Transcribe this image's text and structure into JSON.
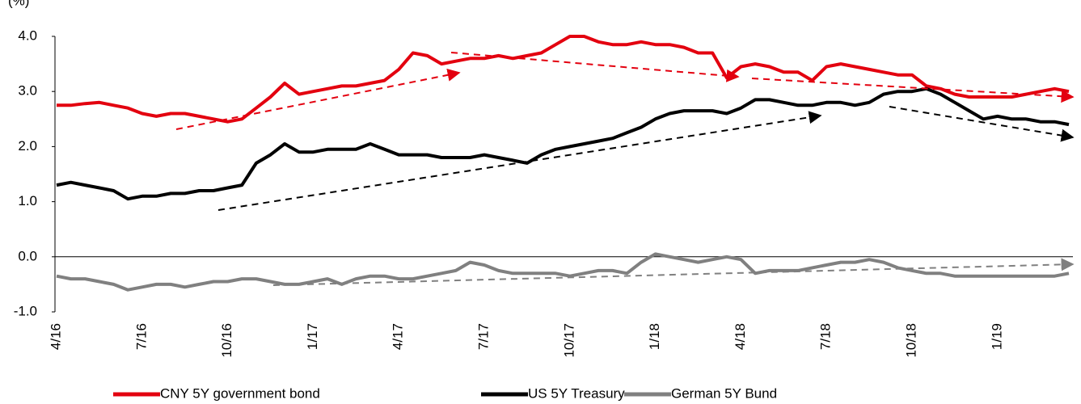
{
  "chart_data": {
    "type": "line",
    "y_label": "(%)",
    "categories": [
      "4/16",
      null,
      null,
      null,
      null,
      null,
      "7/16",
      null,
      null,
      null,
      null,
      null,
      "10/16",
      null,
      null,
      null,
      null,
      null,
      "1/17",
      null,
      null,
      null,
      null,
      null,
      "4/17",
      null,
      null,
      null,
      null,
      null,
      "7/17",
      null,
      null,
      null,
      null,
      null,
      "10/17",
      null,
      null,
      null,
      null,
      null,
      "1/18",
      null,
      null,
      null,
      null,
      null,
      "4/18",
      null,
      null,
      null,
      null,
      null,
      "7/18",
      null,
      null,
      null,
      null,
      null,
      "10/18",
      null,
      null,
      null,
      null,
      null,
      "1/19",
      null,
      null,
      null,
      null,
      null
    ],
    "series": [
      {
        "name": "CNY 5Y government bond",
        "color": "#e3000f",
        "values": [
          2.75,
          2.75,
          2.78,
          2.8,
          2.75,
          2.7,
          2.6,
          2.55,
          2.6,
          2.6,
          2.55,
          2.5,
          2.45,
          2.5,
          2.7,
          2.9,
          3.15,
          2.95,
          3.0,
          3.05,
          3.1,
          3.1,
          3.15,
          3.2,
          3.4,
          3.7,
          3.65,
          3.5,
          3.55,
          3.6,
          3.6,
          3.65,
          3.6,
          3.65,
          3.7,
          3.85,
          4.0,
          4.0,
          3.9,
          3.85,
          3.85,
          3.9,
          3.85,
          3.85,
          3.8,
          3.7,
          3.7,
          3.25,
          3.45,
          3.5,
          3.45,
          3.35,
          3.35,
          3.2,
          3.45,
          3.5,
          3.45,
          3.4,
          3.35,
          3.3,
          3.3,
          3.1,
          3.05,
          2.95,
          2.9,
          2.9,
          2.9,
          2.9,
          2.95,
          3.0,
          3.05,
          3.0
        ]
      },
      {
        "name": "US 5Y Treasury",
        "color": "#000000",
        "values": [
          1.3,
          1.35,
          1.3,
          1.25,
          1.2,
          1.05,
          1.1,
          1.1,
          1.15,
          1.15,
          1.2,
          1.2,
          1.25,
          1.3,
          1.7,
          1.85,
          2.05,
          1.9,
          1.9,
          1.95,
          1.95,
          1.95,
          2.05,
          1.95,
          1.85,
          1.85,
          1.85,
          1.8,
          1.8,
          1.8,
          1.85,
          1.8,
          1.75,
          1.7,
          1.85,
          1.95,
          2.0,
          2.05,
          2.1,
          2.15,
          2.25,
          2.35,
          2.5,
          2.6,
          2.65,
          2.65,
          2.65,
          2.6,
          2.7,
          2.85,
          2.85,
          2.8,
          2.75,
          2.75,
          2.8,
          2.8,
          2.75,
          2.8,
          2.95,
          3.0,
          3.0,
          3.05,
          2.95,
          2.8,
          2.65,
          2.5,
          2.55,
          2.5,
          2.5,
          2.45,
          2.45,
          2.4
        ]
      },
      {
        "name": "German 5Y Bund",
        "color": "#808080",
        "values": [
          -0.35,
          -0.4,
          -0.4,
          -0.45,
          -0.5,
          -0.6,
          -0.55,
          -0.5,
          -0.5,
          -0.55,
          -0.5,
          -0.45,
          -0.45,
          -0.4,
          -0.4,
          -0.45,
          -0.5,
          -0.5,
          -0.45,
          -0.4,
          -0.5,
          -0.4,
          -0.35,
          -0.35,
          -0.4,
          -0.4,
          -0.35,
          -0.3,
          -0.25,
          -0.1,
          -0.15,
          -0.25,
          -0.3,
          -0.3,
          -0.3,
          -0.3,
          -0.35,
          -0.3,
          -0.25,
          -0.25,
          -0.3,
          -0.1,
          0.05,
          0.0,
          -0.05,
          -0.1,
          -0.05,
          0.0,
          -0.05,
          -0.3,
          -0.25,
          -0.25,
          -0.25,
          -0.2,
          -0.15,
          -0.1,
          -0.1,
          -0.05,
          -0.1,
          -0.2,
          -0.25,
          -0.3,
          -0.3,
          -0.35,
          -0.35,
          -0.35,
          -0.35,
          -0.35,
          -0.35,
          -0.35,
          -0.35,
          -0.3
        ]
      }
    ],
    "ylim": [
      -1,
      4
    ],
    "yticks": [
      {
        "value": -1,
        "label": "-1.0"
      },
      {
        "value": 0,
        "label": "0.0"
      },
      {
        "value": 1,
        "label": "1.0"
      },
      {
        "value": 2,
        "label": "2.0"
      },
      {
        "value": 3,
        "label": "3.0"
      },
      {
        "value": 4,
        "label": "4.0"
      }
    ],
    "grid": false,
    "legend": "bottom"
  }
}
